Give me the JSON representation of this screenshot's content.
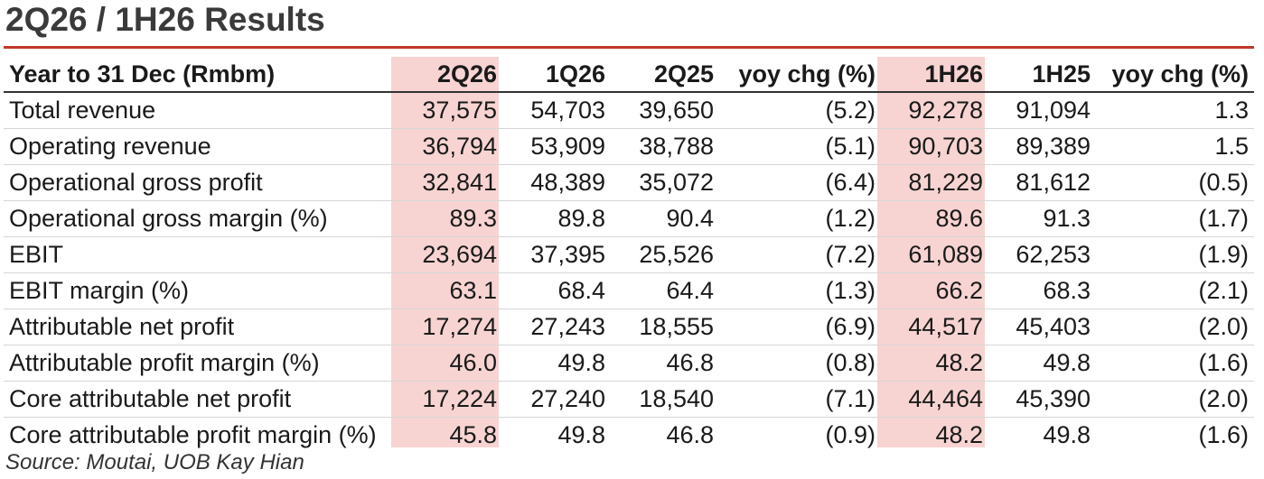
{
  "title": "2Q26 / 1H26 Results",
  "table": {
    "headers": [
      "Year to 31 Dec (Rmbm)",
      "2Q26",
      "1Q26",
      "2Q25",
      "yoy chg (%)",
      "1H26",
      "1H25",
      "yoy chg (%)"
    ],
    "rows": [
      [
        "Total revenue",
        "37,575",
        "54,703",
        "39,650",
        "(5.2)",
        "92,278",
        "91,094",
        "1.3"
      ],
      [
        "Operating revenue",
        "36,794",
        "53,909",
        "38,788",
        "(5.1)",
        "90,703",
        "89,389",
        "1.5"
      ],
      [
        "Operational gross profit",
        "32,841",
        "48,389",
        "35,072",
        "(6.4)",
        "81,229",
        "81,612",
        "(0.5)"
      ],
      [
        "Operational gross margin (%)",
        "89.3",
        "89.8",
        "90.4",
        "(1.2)",
        "89.6",
        "91.3",
        "(1.7)"
      ],
      [
        "EBIT",
        "23,694",
        "37,395",
        "25,526",
        "(7.2)",
        "61,089",
        "62,253",
        "(1.9)"
      ],
      [
        "EBIT margin (%)",
        "63.1",
        "68.4",
        "64.4",
        "(1.3)",
        "66.2",
        "68.3",
        "(2.1)"
      ],
      [
        "Attributable net profit",
        "17,274",
        "27,243",
        "18,555",
        "(6.9)",
        "44,517",
        "45,403",
        "(2.0)"
      ],
      [
        "Attributable profit margin (%)",
        "46.0",
        "49.8",
        "46.8",
        "(0.8)",
        "48.2",
        "49.8",
        "(1.6)"
      ],
      [
        "Core attributable net profit",
        "17,224",
        "27,240",
        "18,540",
        "(7.1)",
        "44,464",
        "45,390",
        "(2.0)"
      ],
      [
        "Core attributable profit margin (%)",
        "45.8",
        "49.8",
        "46.8",
        "(0.9)",
        "48.2",
        "49.8",
        "(1.6)"
      ]
    ]
  },
  "source": "Source: Moutai, UOB Kay Hian",
  "colors": {
    "accent_rule": "#c0392b",
    "highlight": "#f7d4d2"
  }
}
